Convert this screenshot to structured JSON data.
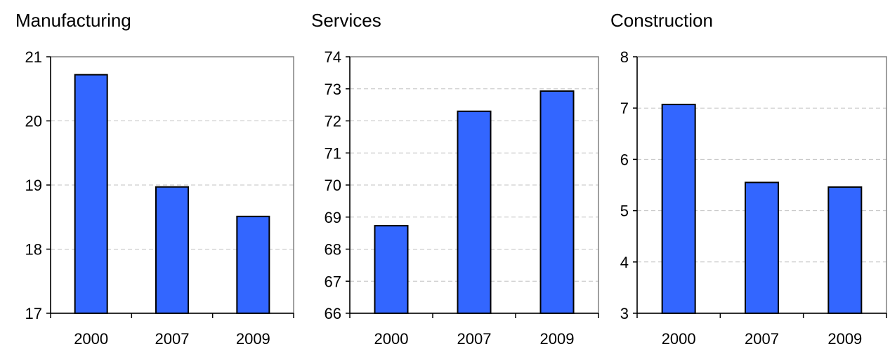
{
  "chart_data": [
    {
      "type": "bar",
      "title": "Manufacturing",
      "categories": [
        "2000",
        "2007",
        "2009"
      ],
      "values": [
        20.72,
        18.97,
        18.51
      ],
      "ylim": [
        17,
        21
      ],
      "yticks": [
        17,
        18,
        19,
        20,
        21
      ],
      "xlabel": "",
      "ylabel": "",
      "grid": true,
      "bar_color": "#3366FF"
    },
    {
      "type": "bar",
      "title": "Services",
      "categories": [
        "2000",
        "2007",
        "2009"
      ],
      "values": [
        68.73,
        72.3,
        72.93
      ],
      "ylim": [
        66,
        74
      ],
      "yticks": [
        66,
        67,
        68,
        69,
        70,
        71,
        72,
        73,
        74
      ],
      "xlabel": "",
      "ylabel": "",
      "grid": true,
      "bar_color": "#3366FF"
    },
    {
      "type": "bar",
      "title": "Construction",
      "categories": [
        "2000",
        "2007",
        "2009"
      ],
      "values": [
        7.07,
        5.55,
        5.46
      ],
      "ylim": [
        3,
        8
      ],
      "yticks": [
        3,
        4,
        5,
        6,
        7,
        8
      ],
      "xlabel": "",
      "ylabel": "",
      "grid": true,
      "bar_color": "#3366FF"
    }
  ]
}
